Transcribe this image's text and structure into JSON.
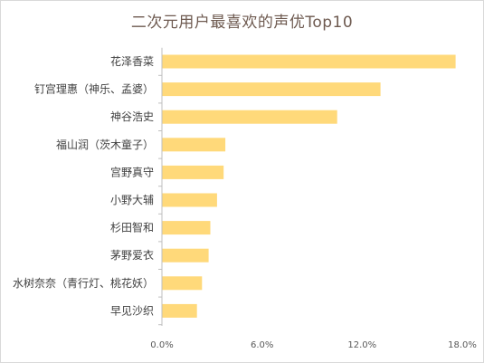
{
  "colors": {
    "bar": "#ffd97a",
    "axis": "#bfbfbf",
    "title": "#6e5a50",
    "text": "#404040"
  },
  "chart_data": {
    "type": "bar",
    "orientation": "horizontal",
    "title": "二次元用户最喜欢的声优Top10",
    "xlabel": "",
    "ylabel": "",
    "categories": [
      "花泽香菜",
      "钉宫理惠（神乐、孟婆）",
      "神谷浩史",
      "福山润（茨木童子）",
      "宫野真守",
      "小野大辅",
      "杉田智和",
      "茅野爱衣",
      "水树奈奈（青行灯、桃花妖）",
      "早见沙织"
    ],
    "values": [
      17.6,
      13.1,
      10.5,
      3.8,
      3.7,
      3.3,
      2.9,
      2.8,
      2.4,
      2.1
    ],
    "value_unit": "%",
    "xlim": [
      0,
      18
    ],
    "xticks": [
      "0.0%",
      "6.0%",
      "12.0%",
      "18.0%"
    ],
    "xtick_values": [
      0,
      6,
      12,
      18
    ],
    "grid": false,
    "legend": "none"
  }
}
